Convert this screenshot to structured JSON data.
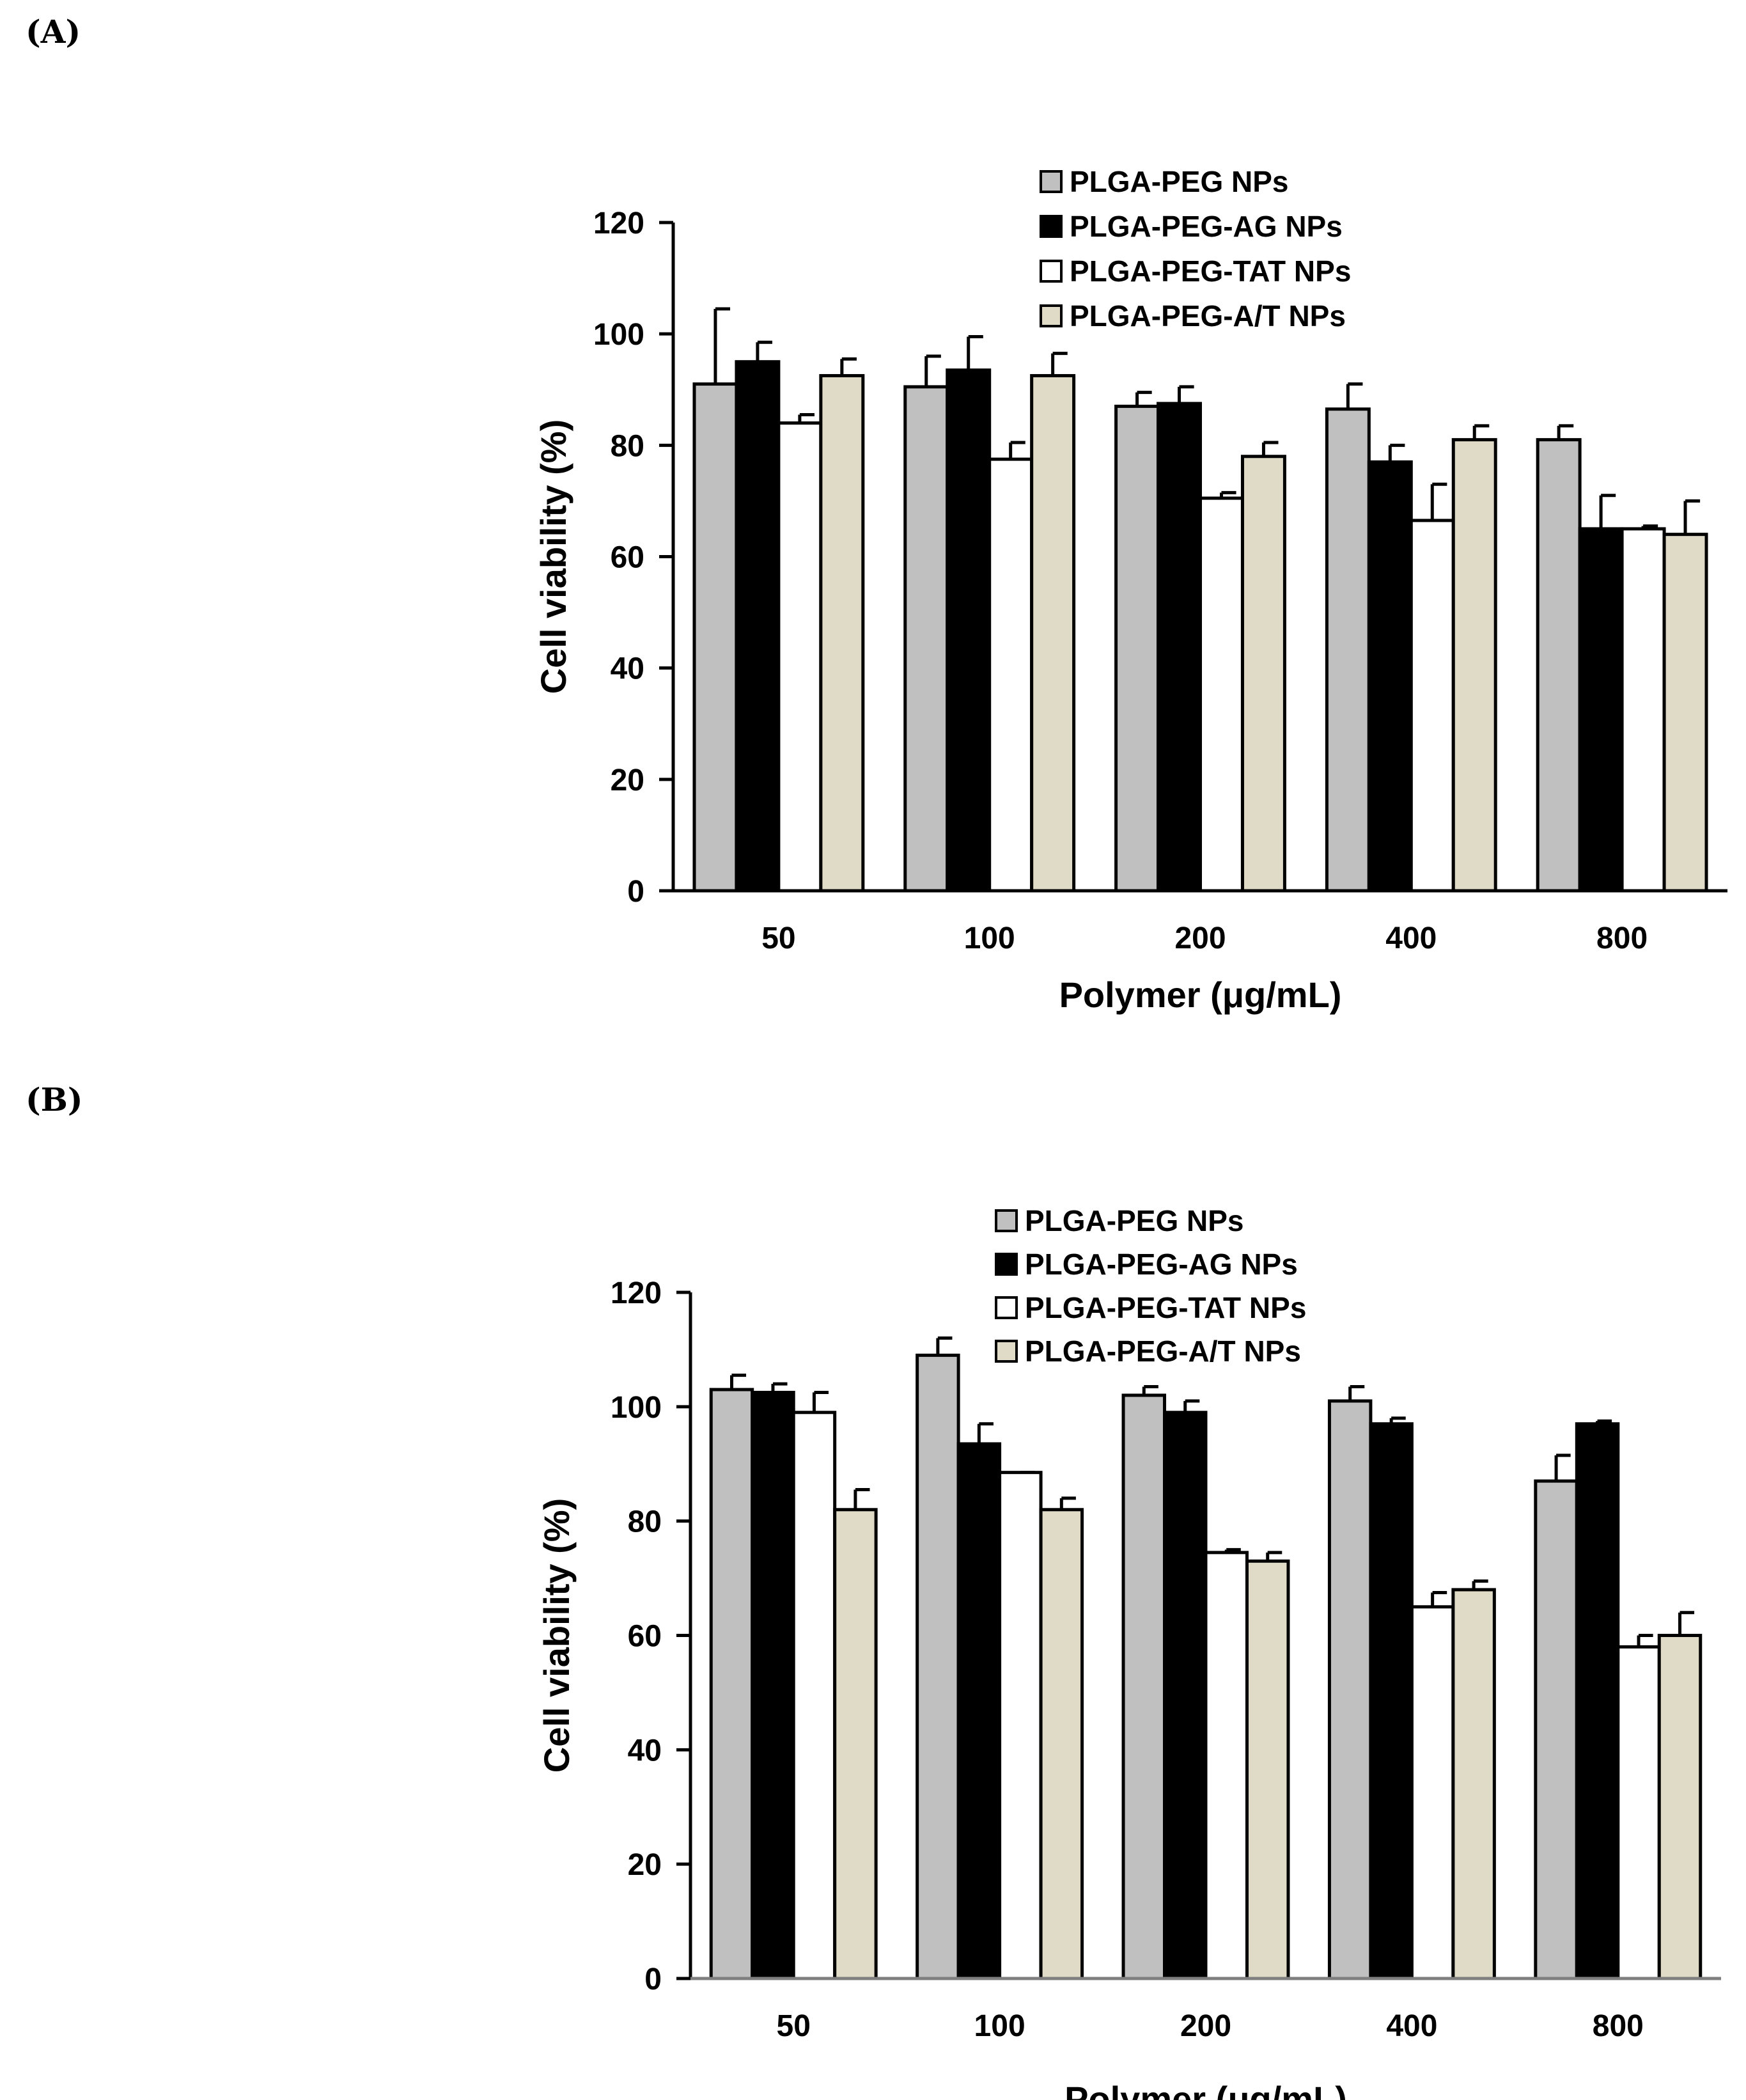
{
  "panels": {
    "a_label": "(A)",
    "b_label": "(B)"
  },
  "chart_data": [
    {
      "type": "bar",
      "id": "A",
      "xlabel": "Polymer  (μg/mL)",
      "ylabel": "Cell viability  (%)",
      "ylim": [
        0,
        120
      ],
      "yticks": [
        0,
        20,
        40,
        60,
        80,
        100,
        120
      ],
      "categories": [
        "50",
        "100",
        "200",
        "400",
        "800"
      ],
      "legend_position": "top-center",
      "series": [
        {
          "name": "PLGA-PEG NPs",
          "color": "#c0c0c0",
          "values": [
            91,
            90.5,
            87,
            86.5,
            81
          ],
          "errors": [
            13.5,
            5.5,
            2.5,
            4.5,
            2.5
          ]
        },
        {
          "name": "PLGA-PEG-AG NPs",
          "color": "#000000",
          "values": [
            95,
            93.5,
            87.5,
            77,
            65
          ],
          "errors": [
            3.5,
            6,
            3,
            3,
            6
          ]
        },
        {
          "name": "PLGA-PEG-TAT NPs",
          "color": "#ffffff",
          "values": [
            84,
            77.5,
            70.5,
            66.5,
            65
          ],
          "errors": [
            1.5,
            3,
            1,
            6.5,
            0.5
          ]
        },
        {
          "name": "PLGA-PEG-A/T NPs",
          "color": "#e0dbc7",
          "values": [
            92.5,
            92.5,
            78,
            81,
            64
          ],
          "errors": [
            3,
            4,
            2.5,
            2.5,
            6
          ]
        }
      ]
    },
    {
      "type": "bar",
      "id": "B",
      "xlabel": "Polymer (μg/mL)",
      "ylabel": "Cell viability (%)",
      "ylim": [
        0,
        120
      ],
      "yticks": [
        0,
        20,
        40,
        60,
        80,
        100,
        120
      ],
      "categories": [
        "50",
        "100",
        "200",
        "400",
        "800"
      ],
      "legend_position": "top-center",
      "series": [
        {
          "name": "PLGA-PEG NPs",
          "color": "#c0c0c0",
          "values": [
            103,
            109,
            102,
            101,
            87
          ],
          "errors": [
            2.5,
            3,
            1.5,
            2.5,
            4.5
          ]
        },
        {
          "name": "PLGA-PEG-AG NPs",
          "color": "#000000",
          "values": [
            102.5,
            93.5,
            99,
            97,
            97
          ],
          "errors": [
            1.5,
            3.5,
            2,
            1,
            0.5
          ]
        },
        {
          "name": "PLGA-PEG-TAT NPs",
          "color": "#ffffff",
          "values": [
            99,
            88.5,
            74.5,
            65,
            58
          ],
          "errors": [
            3.5,
            0,
            0.5,
            2.5,
            2
          ]
        },
        {
          "name": "PLGA-PEG-A/T NPs",
          "color": "#e0dbc7",
          "values": [
            82,
            82,
            73,
            68,
            60
          ],
          "errors": [
            3.5,
            2,
            1.5,
            1.5,
            4
          ]
        }
      ]
    }
  ]
}
